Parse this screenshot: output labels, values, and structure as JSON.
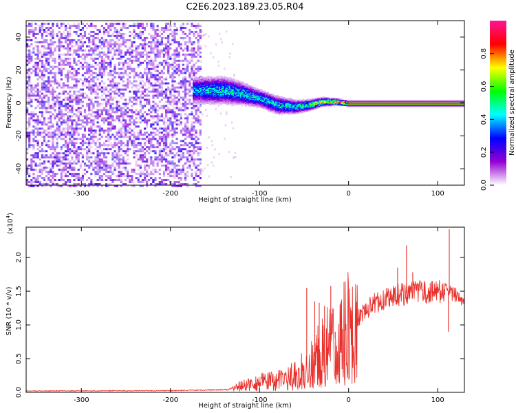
{
  "title": "C2E6.2023.189.23.05.R04",
  "chart_data": [
    {
      "type": "heatmap",
      "title": "C2E6.2023.189.23.05.R04",
      "xlabel": "Height of straight line (km)",
      "ylabel": "Frequency (Hz)",
      "xlim": [
        -362,
        130
      ],
      "ylim": [
        -50,
        50
      ],
      "x_ticks": [
        -300,
        -200,
        -100,
        0,
        100
      ],
      "x_tick_labels": [
        "-300",
        "-200",
        "-100",
        "0",
        "100"
      ],
      "y_ticks": [
        -40,
        -20,
        0,
        20,
        40
      ],
      "y_tick_labels": [
        "-40",
        "-20",
        "0",
        "20",
        "40"
      ],
      "grid": false,
      "colorbar": {
        "label": "Normalized spectral amplitude",
        "range": [
          0,
          1
        ],
        "ticks": [
          0.0,
          0.2,
          0.4,
          0.6,
          0.8
        ],
        "tick_labels": [
          "0.0",
          "0.2",
          "0.4",
          "0.6",
          "0.8"
        ],
        "colors": [
          "#ffffff",
          "#9400d3",
          "#0000ff",
          "#00ffff",
          "#00ff00",
          "#ffff00",
          "#ff0000",
          "#ff1493"
        ]
      },
      "noise_region": {
        "x_range": [
          -362,
          -167
        ],
        "freq_range": [
          -50,
          50
        ],
        "amplitude": 0.12
      },
      "signal_ridge": {
        "x": [
          -175,
          -160,
          -140,
          -120,
          -100,
          -80,
          -60,
          -45,
          -30,
          -15,
          0,
          50,
          100,
          110,
          130
        ],
        "center_freq": [
          8,
          8,
          8,
          6,
          3,
          -1,
          -2,
          -1,
          1,
          1,
          0,
          0,
          0,
          0,
          0
        ],
        "half_width": [
          6,
          6,
          6,
          5,
          4,
          4,
          3,
          2.5,
          2,
          1.5,
          1.2,
          1.2,
          1.2,
          1.2,
          1.2
        ],
        "peak_amplitude": [
          0.4,
          0.45,
          0.5,
          0.5,
          0.45,
          0.5,
          0.55,
          0.6,
          0.75,
          0.9,
          0.95,
          0.95,
          0.95,
          0.95,
          0.95
        ]
      }
    },
    {
      "type": "line",
      "xlabel": "Height of straight line (km)",
      "ylabel": "SNR (10 * v/v)",
      "y_multiplier": "(x10",
      "y_multiplier_exp": "4",
      "y_multiplier_close": ")",
      "xlim": [
        -362,
        130
      ],
      "ylim": [
        0,
        24500
      ],
      "x_ticks": [
        -300,
        -200,
        -100,
        0,
        100
      ],
      "x_tick_labels": [
        "-300",
        "-200",
        "-100",
        "0",
        "100"
      ],
      "y_ticks": [
        0,
        5000,
        10000,
        15000,
        20000
      ],
      "y_tick_labels": [
        "0.0",
        "0.5",
        "1.0",
        "1.5",
        "2.0"
      ],
      "grid": false,
      "series": [
        {
          "color": "#e8312c",
          "envelope_x": [
            -362,
            -200,
            -135,
            -125,
            -100,
            -80,
            -60,
            -50,
            -40,
            -30,
            -20,
            -10,
            0,
            10,
            20,
            30,
            40,
            50,
            60,
            70,
            80,
            90,
            100,
            110,
            117,
            125,
            130
          ],
          "envelope_y": [
            200,
            250,
            400,
            800,
            1500,
            1700,
            2500,
            3500,
            5000,
            6500,
            7500,
            8500,
            10000,
            11000,
            12300,
            13300,
            13800,
            14300,
            14600,
            14700,
            14800,
            14800,
            14900,
            15000,
            14500,
            14200,
            13500
          ],
          "spikes": [
            {
              "x": -47,
              "y": 15500
            },
            {
              "x": -38,
              "y": 13500
            },
            {
              "x": -33,
              "y": 13300
            },
            {
              "x": -27,
              "y": 12800
            },
            {
              "x": -20,
              "y": 15800
            },
            {
              "x": -15,
              "y": 9000
            },
            {
              "x": 65,
              "y": 21800
            },
            {
              "x": 55,
              "y": 18500
            },
            {
              "x": 72,
              "y": 17800
            },
            {
              "x": 105,
              "y": 16000
            },
            {
              "x": 113,
              "y": 24200
            },
            {
              "x": 112,
              "y": 9000
            }
          ]
        }
      ]
    }
  ]
}
